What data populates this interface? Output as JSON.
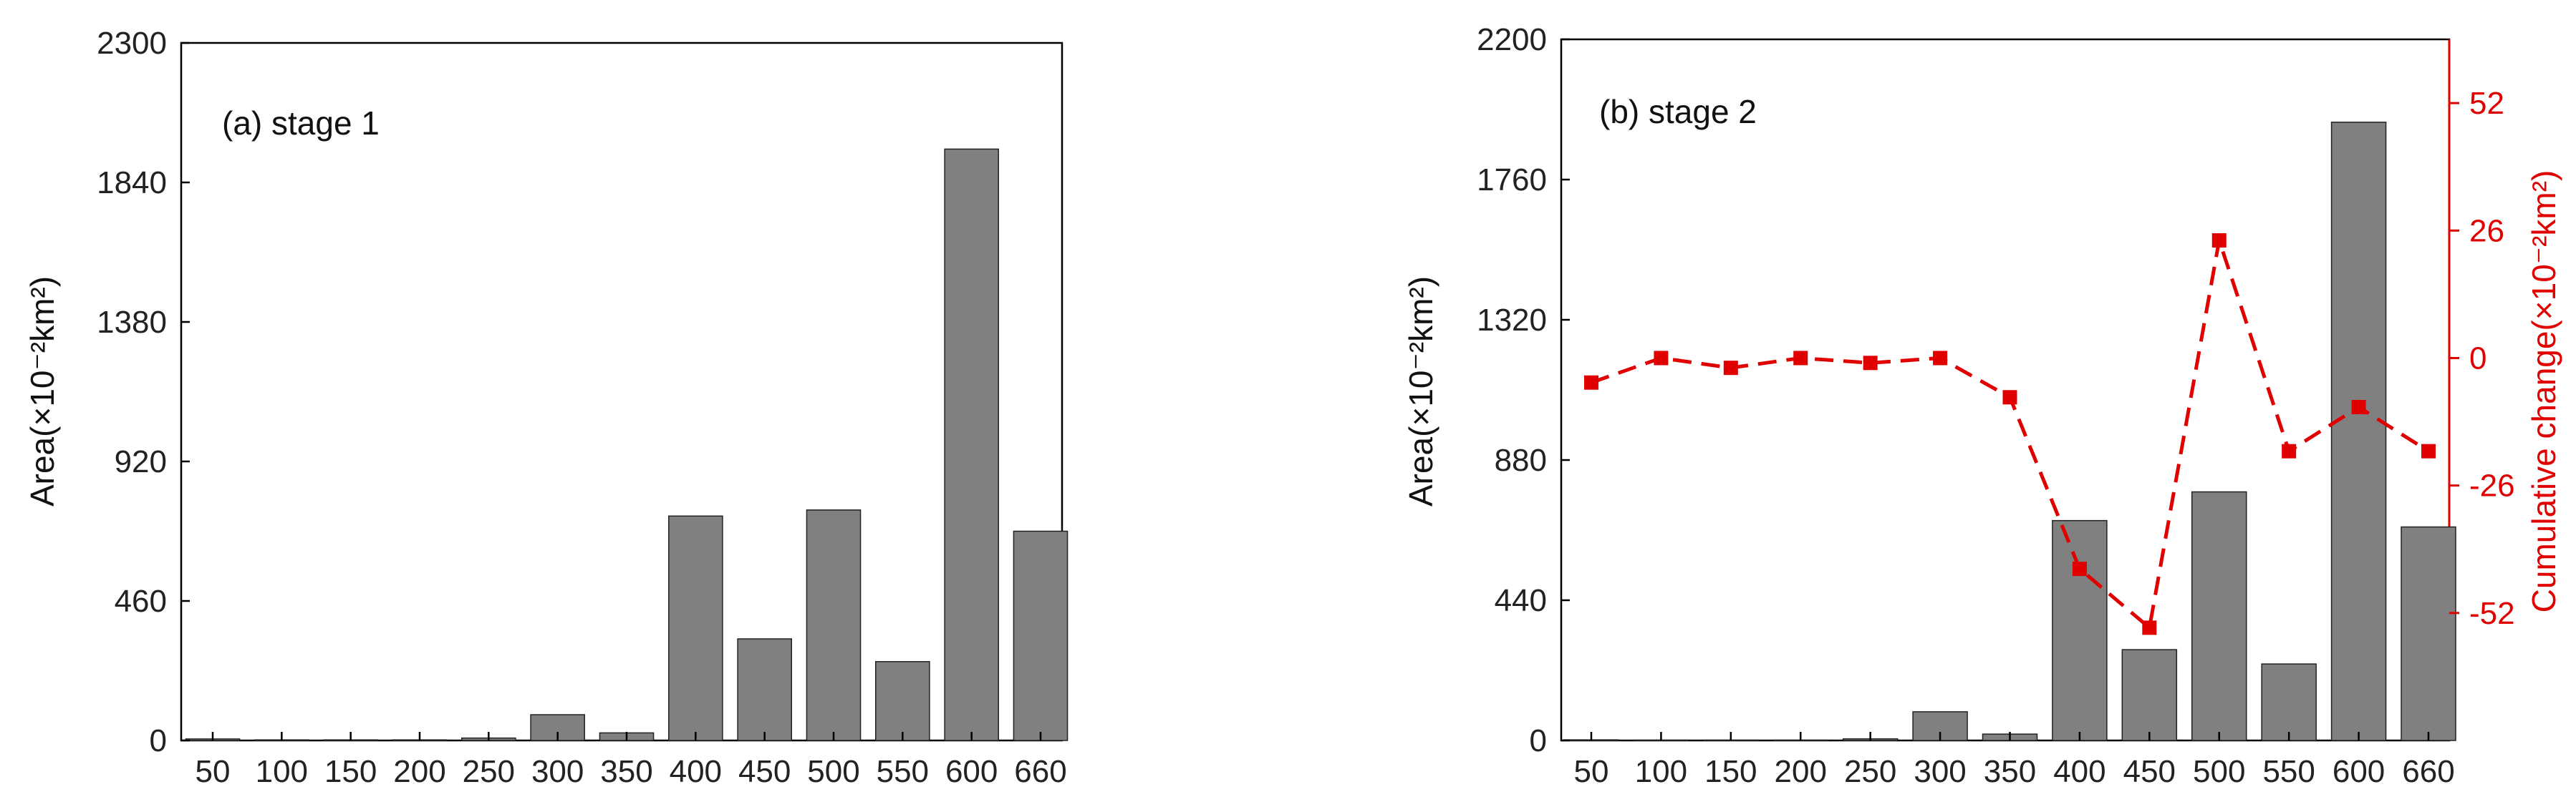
{
  "chart_data": [
    {
      "type": "bar",
      "panel_label": "(a) stage 1",
      "categories": [
        "50",
        "100",
        "150",
        "200",
        "250",
        "300",
        "350",
        "400",
        "450",
        "500",
        "550",
        "600",
        "660"
      ],
      "values": [
        5,
        2,
        2,
        2,
        8,
        85,
        25,
        740,
        335,
        760,
        260,
        1950,
        690
      ],
      "ylabel": "Area(×10⁻²km²)",
      "ylim": [
        0,
        2300
      ],
      "yticks": [
        "0",
        "460",
        "920",
        "1380",
        "1840",
        "2300"
      ],
      "bar_color": "#808080",
      "grid": false
    },
    {
      "type": "bar",
      "panel_label": "(b) stage 2",
      "categories": [
        "50",
        "100",
        "150",
        "200",
        "250",
        "300",
        "350",
        "400",
        "450",
        "500",
        "550",
        "600",
        "660"
      ],
      "values": [
        2,
        1,
        1,
        1,
        5,
        90,
        20,
        690,
        285,
        780,
        240,
        1940,
        670
      ],
      "ylabel": "Area(×10⁻²km²)",
      "ylim": [
        0,
        2200
      ],
      "yticks": [
        "0",
        "440",
        "880",
        "1320",
        "1760",
        "2200"
      ],
      "bar_color": "#808080",
      "secondary": {
        "type": "line",
        "style": "dashed",
        "color": "#e00000",
        "ylabel": "Cumulative change(×10⁻²km²)",
        "ylim": [
          -78,
          65
        ],
        "yticks": [
          "-52",
          "-26",
          "0",
          "26",
          "52"
        ],
        "values": [
          -5,
          0,
          -2,
          0,
          -1,
          0,
          -8,
          -43,
          -55,
          24,
          -19,
          -10,
          -19
        ]
      },
      "grid": false
    }
  ]
}
